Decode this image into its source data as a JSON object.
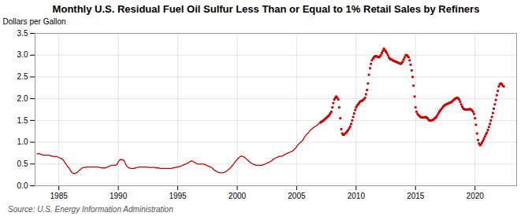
{
  "chart_data": {
    "type": "line",
    "title": "Monthly U.S. Residual Fuel Oil Sulfur Less Than or Equal to 1% Retail Sales by Refiners",
    "ylabel": "Dollars per Gallon",
    "source": "Source: U.S. Energy Information Administration",
    "xlim": [
      1983.0,
      2023.5
    ],
    "ylim": [
      0.0,
      3.5
    ],
    "xticks": [
      1985,
      1990,
      1995,
      2000,
      2005,
      2010,
      2015,
      2020
    ],
    "yticks": [
      {
        "value": 0.0,
        "label": "0.0"
      },
      0.5,
      {
        "value": 1.0,
        "label": "1.0"
      },
      1.5,
      {
        "value": 2.0,
        "label": "2.0"
      },
      2.5,
      {
        "value": 3.0,
        "label": "3.0"
      },
      3.5
    ],
    "grid": true,
    "series": [
      {
        "type": "line",
        "color": "#cc0000",
        "line_style": "solid",
        "x": [
          1983.17,
          1983.25,
          1983.33,
          1983.42,
          1983.5,
          1983.58,
          1983.67,
          1983.75,
          1983.83,
          1983.92,
          1984.0,
          1984.08,
          1984.17,
          1984.25,
          1984.33,
          1984.42,
          1984.5,
          1984.58,
          1984.67,
          1984.75,
          1984.83,
          1984.92,
          1985.0,
          1985.08,
          1985.17,
          1985.25,
          1985.33,
          1985.42,
          1985.5,
          1985.58,
          1985.67,
          1985.75,
          1985.83,
          1985.92,
          1986.0,
          1986.08,
          1986.17,
          1986.25,
          1986.33,
          1986.42,
          1986.5,
          1986.58,
          1986.67,
          1986.75,
          1986.83,
          1986.92,
          1987.0,
          1987.08,
          1987.17,
          1987.25,
          1987.33,
          1987.42,
          1987.5,
          1987.58,
          1987.67,
          1987.75,
          1987.83,
          1987.92,
          1988.0,
          1988.08,
          1988.17,
          1988.25,
          1988.33,
          1988.42,
          1988.5,
          1988.58,
          1988.67,
          1988.75,
          1988.83,
          1988.92,
          1989.0,
          1989.08,
          1989.17,
          1989.25,
          1989.33,
          1989.42,
          1989.5,
          1989.58,
          1989.67,
          1989.75,
          1989.83,
          1989.92,
          1990.0,
          1990.08,
          1990.17,
          1990.25,
          1990.33,
          1990.42,
          1990.5,
          1990.58,
          1990.67,
          1990.75,
          1990.83,
          1990.92,
          1991.0,
          1991.08,
          1991.17,
          1991.25,
          1991.33,
          1991.42,
          1991.5,
          1991.58,
          1991.67,
          1991.75,
          1991.83,
          1991.92,
          1992.0,
          1992.08,
          1992.17,
          1992.25,
          1992.33,
          1992.42,
          1992.5,
          1992.58,
          1992.67,
          1992.75,
          1992.83,
          1992.92,
          1993.0,
          1993.08,
          1993.17,
          1993.25,
          1993.33,
          1993.42,
          1993.5,
          1993.58,
          1993.67,
          1993.75,
          1993.83,
          1993.92,
          1994.0,
          1994.08,
          1994.17,
          1994.25,
          1994.33,
          1994.42,
          1994.5,
          1994.58,
          1994.67,
          1994.75,
          1994.83,
          1994.92,
          1995.0,
          1995.08,
          1995.17,
          1995.25,
          1995.33,
          1995.42,
          1995.5,
          1995.58,
          1995.67,
          1995.75,
          1995.83,
          1995.92,
          1996.0,
          1996.08,
          1996.17,
          1996.25,
          1996.33,
          1996.42,
          1996.5,
          1996.58,
          1996.67,
          1996.75,
          1996.83,
          1996.92,
          1997.0,
          1997.08,
          1997.17,
          1997.25,
          1997.33,
          1997.42,
          1997.5,
          1997.58,
          1997.67,
          1997.75,
          1997.83,
          1997.92,
          1998.0,
          1998.08,
          1998.17,
          1998.25,
          1998.33,
          1998.42,
          1998.5,
          1998.58,
          1998.67,
          1998.75,
          1998.83,
          1998.92,
          1999.0,
          1999.08,
          1999.17,
          1999.25,
          1999.33,
          1999.42,
          1999.5,
          1999.58,
          1999.67,
          1999.75,
          1999.83,
          1999.92,
          2000.0,
          2000.08,
          2000.17,
          2000.25,
          2000.33,
          2000.42,
          2000.5,
          2000.58,
          2000.67,
          2000.75,
          2000.83,
          2000.92,
          2001.0,
          2001.08,
          2001.17,
          2001.25,
          2001.33,
          2001.42,
          2001.5,
          2001.58,
          2001.67,
          2001.75,
          2001.83,
          2001.92,
          2002.0,
          2002.08,
          2002.17,
          2002.25,
          2002.33,
          2002.42,
          2002.5,
          2002.58,
          2002.67,
          2002.75,
          2002.83,
          2002.92,
          2003.0,
          2003.08,
          2003.17,
          2003.25,
          2003.33,
          2003.42,
          2003.5,
          2003.58,
          2003.67,
          2003.75,
          2003.83,
          2003.92,
          2004.0,
          2004.08,
          2004.17,
          2004.25,
          2004.33,
          2004.42,
          2004.5,
          2004.58,
          2004.67,
          2004.75,
          2004.83,
          2004.92,
          2005.0,
          2005.08,
          2005.17,
          2005.25,
          2005.33,
          2005.42,
          2005.5,
          2005.58,
          2005.67,
          2005.75,
          2005.83,
          2005.92,
          2006.0,
          2006.08,
          2006.17,
          2006.25,
          2006.33,
          2006.42,
          2006.5,
          2006.58,
          2006.67,
          2006.75,
          2006.83,
          2006.92
        ],
        "values": [
          0.73,
          0.74,
          0.74,
          0.73,
          0.72,
          0.71,
          0.71,
          0.7,
          0.7,
          0.7,
          0.7,
          0.7,
          0.7,
          0.69,
          0.69,
          0.68,
          0.68,
          0.67,
          0.67,
          0.67,
          0.67,
          0.66,
          0.65,
          0.64,
          0.63,
          0.62,
          0.6,
          0.57,
          0.54,
          0.5,
          0.47,
          0.44,
          0.41,
          0.38,
          0.34,
          0.31,
          0.29,
          0.28,
          0.28,
          0.29,
          0.3,
          0.32,
          0.34,
          0.36,
          0.38,
          0.4,
          0.41,
          0.42,
          0.42,
          0.42,
          0.43,
          0.43,
          0.43,
          0.43,
          0.43,
          0.43,
          0.43,
          0.43,
          0.43,
          0.43,
          0.43,
          0.43,
          0.43,
          0.42,
          0.42,
          0.41,
          0.41,
          0.41,
          0.41,
          0.41,
          0.42,
          0.43,
          0.44,
          0.45,
          0.46,
          0.47,
          0.47,
          0.47,
          0.47,
          0.47,
          0.48,
          0.5,
          0.55,
          0.58,
          0.6,
          0.6,
          0.6,
          0.59,
          0.58,
          0.52,
          0.47,
          0.44,
          0.42,
          0.41,
          0.4,
          0.4,
          0.4,
          0.4,
          0.4,
          0.41,
          0.41,
          0.42,
          0.42,
          0.43,
          0.43,
          0.43,
          0.43,
          0.43,
          0.43,
          0.43,
          0.43,
          0.43,
          0.42,
          0.42,
          0.42,
          0.42,
          0.42,
          0.42,
          0.42,
          0.42,
          0.41,
          0.41,
          0.41,
          0.41,
          0.4,
          0.4,
          0.4,
          0.4,
          0.4,
          0.4,
          0.4,
          0.4,
          0.4,
          0.4,
          0.4,
          0.4,
          0.4,
          0.41,
          0.41,
          0.42,
          0.42,
          0.43,
          0.43,
          0.44,
          0.44,
          0.45,
          0.46,
          0.47,
          0.48,
          0.49,
          0.5,
          0.51,
          0.52,
          0.53,
          0.55,
          0.56,
          0.57,
          0.56,
          0.55,
          0.54,
          0.52,
          0.51,
          0.5,
          0.5,
          0.5,
          0.5,
          0.5,
          0.5,
          0.5,
          0.49,
          0.48,
          0.47,
          0.46,
          0.45,
          0.44,
          0.43,
          0.42,
          0.4,
          0.38,
          0.36,
          0.34,
          0.33,
          0.32,
          0.31,
          0.3,
          0.3,
          0.3,
          0.3,
          0.3,
          0.31,
          0.32,
          0.33,
          0.35,
          0.37,
          0.39,
          0.41,
          0.43,
          0.46,
          0.49,
          0.52,
          0.55,
          0.58,
          0.6,
          0.63,
          0.65,
          0.67,
          0.68,
          0.68,
          0.67,
          0.66,
          0.64,
          0.62,
          0.6,
          0.58,
          0.56,
          0.54,
          0.52,
          0.51,
          0.5,
          0.49,
          0.48,
          0.47,
          0.47,
          0.47,
          0.47,
          0.47,
          0.47,
          0.47,
          0.48,
          0.49,
          0.5,
          0.51,
          0.52,
          0.53,
          0.54,
          0.55,
          0.56,
          0.58,
          0.6,
          0.62,
          0.63,
          0.64,
          0.65,
          0.66,
          0.67,
          0.68,
          0.68,
          0.68,
          0.69,
          0.7,
          0.72,
          0.73,
          0.74,
          0.75,
          0.76,
          0.77,
          0.78,
          0.79,
          0.8,
          0.82,
          0.84,
          0.87,
          0.9,
          0.93,
          0.96,
          0.98,
          1.0,
          1.02,
          1.04,
          1.08,
          1.12,
          1.15,
          1.18,
          1.2,
          1.22,
          1.25,
          1.28,
          1.3,
          1.32,
          1.34,
          1.35,
          1.37,
          1.38,
          1.4,
          1.42,
          1.44
        ]
      },
      {
        "type": "scatter",
        "color": "#cc0000",
        "marker": "square",
        "line_style": "none",
        "x": [
          2007.0,
          2007.08,
          2007.17,
          2007.25,
          2007.33,
          2007.42,
          2007.5,
          2007.58,
          2007.67,
          2007.75,
          2007.83,
          2007.92,
          2008.0,
          2008.08,
          2008.17,
          2008.25,
          2008.33,
          2008.42,
          2008.5,
          2008.58,
          2008.67,
          2008.75,
          2008.83,
          2008.92,
          2009.0,
          2009.08,
          2009.17,
          2009.25,
          2009.33,
          2009.42,
          2009.5,
          2009.58,
          2009.67,
          2009.75,
          2009.83,
          2009.92,
          2010.0,
          2010.08,
          2010.17,
          2010.25,
          2010.33,
          2010.42,
          2010.5,
          2010.58,
          2010.67,
          2010.75,
          2010.83,
          2010.92,
          2011.0,
          2011.08,
          2011.17,
          2011.25,
          2011.33,
          2011.42,
          2011.5,
          2011.58,
          2011.67,
          2011.75,
          2011.83,
          2011.92,
          2012.0,
          2012.08,
          2012.17,
          2012.25,
          2012.33,
          2012.42,
          2012.5,
          2012.58,
          2012.67,
          2012.75,
          2012.83,
          2012.92,
          2013.0,
          2013.08,
          2013.17,
          2013.25,
          2013.33,
          2013.42,
          2013.5,
          2013.58,
          2013.67,
          2013.75,
          2013.83,
          2013.92,
          2014.0,
          2014.08,
          2014.17,
          2014.25,
          2014.33,
          2014.42,
          2014.5,
          2014.58,
          2014.67,
          2014.75,
          2014.83,
          2014.92,
          2015.0,
          2015.08,
          2015.17,
          2015.25,
          2015.33,
          2015.42,
          2015.5,
          2015.58,
          2015.67,
          2015.75,
          2015.83,
          2015.92,
          2016.0,
          2016.08,
          2016.17,
          2016.25,
          2016.33,
          2016.42,
          2016.5,
          2016.58,
          2016.67,
          2016.75,
          2016.83,
          2016.92,
          2017.0,
          2017.08,
          2017.17,
          2017.25,
          2017.33,
          2017.42,
          2017.5,
          2017.58,
          2017.67,
          2017.75,
          2017.83,
          2017.92,
          2018.0,
          2018.08,
          2018.17,
          2018.25,
          2018.33,
          2018.42,
          2018.5,
          2018.58,
          2018.67,
          2018.75,
          2018.83,
          2018.92,
          2019.0,
          2019.08,
          2019.17,
          2019.25,
          2019.33,
          2019.42,
          2019.5,
          2019.58,
          2019.67,
          2019.75,
          2019.83,
          2019.92,
          2020.0,
          2020.08,
          2020.17,
          2020.25,
          2020.33,
          2020.42,
          2020.5,
          2020.58,
          2020.67,
          2020.75,
          2020.83,
          2020.92,
          2021.0,
          2021.08,
          2021.17,
          2021.25,
          2021.33,
          2021.42,
          2021.5,
          2021.58,
          2021.67,
          2021.75,
          2021.83,
          2021.92,
          2022.0,
          2022.08,
          2022.17,
          2022.25,
          2022.33,
          2022.42
        ],
        "values": [
          1.45,
          1.47,
          1.48,
          1.5,
          1.52,
          1.54,
          1.56,
          1.58,
          1.6,
          1.63,
          1.66,
          1.7,
          1.8,
          1.9,
          1.98,
          2.02,
          2.05,
          2.02,
          1.98,
          1.8,
          1.55,
          1.3,
          1.2,
          1.17,
          1.18,
          1.2,
          1.22,
          1.25,
          1.28,
          1.32,
          1.36,
          1.42,
          1.5,
          1.58,
          1.66,
          1.74,
          1.8,
          1.84,
          1.87,
          1.9,
          1.93,
          1.95,
          1.95,
          1.97,
          1.99,
          2.02,
          2.1,
          2.2,
          2.35,
          2.55,
          2.7,
          2.8,
          2.88,
          2.92,
          2.95,
          2.97,
          2.98,
          2.97,
          2.96,
          2.95,
          2.97,
          3.0,
          3.05,
          3.1,
          3.15,
          3.12,
          3.08,
          3.05,
          3.0,
          2.95,
          2.92,
          2.9,
          2.9,
          2.88,
          2.87,
          2.86,
          2.85,
          2.84,
          2.83,
          2.82,
          2.81,
          2.8,
          2.82,
          2.85,
          2.9,
          2.95,
          3.0,
          3.0,
          2.98,
          2.95,
          2.88,
          2.78,
          2.65,
          2.5,
          2.3,
          2.05,
          1.8,
          1.7,
          1.65,
          1.62,
          1.6,
          1.58,
          1.57,
          1.57,
          1.57,
          1.57,
          1.58,
          1.57,
          1.55,
          1.52,
          1.5,
          1.5,
          1.5,
          1.51,
          1.52,
          1.54,
          1.56,
          1.58,
          1.62,
          1.66,
          1.7,
          1.73,
          1.76,
          1.79,
          1.82,
          1.84,
          1.86,
          1.87,
          1.88,
          1.89,
          1.9,
          1.91,
          1.92,
          1.94,
          1.96,
          1.98,
          2.0,
          2.01,
          2.02,
          2.01,
          1.98,
          1.93,
          1.87,
          1.82,
          1.78,
          1.76,
          1.75,
          1.75,
          1.75,
          1.75,
          1.76,
          1.76,
          1.75,
          1.73,
          1.7,
          1.65,
          1.55,
          1.4,
          1.2,
          1.05,
          0.97,
          0.93,
          0.95,
          0.99,
          1.03,
          1.08,
          1.13,
          1.18,
          1.22,
          1.28,
          1.35,
          1.42,
          1.5,
          1.58,
          1.67,
          1.77,
          1.87,
          1.97,
          2.08,
          2.18,
          2.28,
          2.33,
          2.35,
          2.33,
          2.3,
          2.28
        ]
      }
    ]
  }
}
